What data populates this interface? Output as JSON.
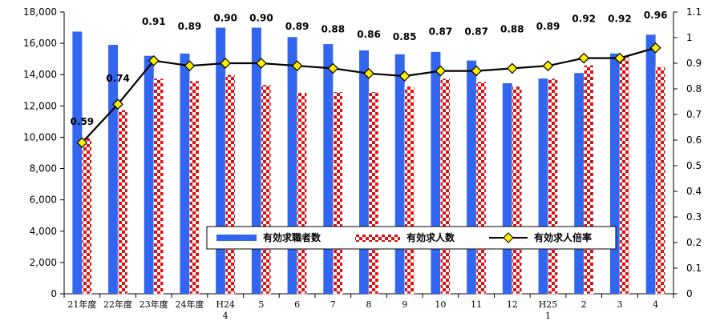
{
  "chart_data": {
    "type": "bar",
    "categories": [
      "21年度",
      "22年度",
      "23年度",
      "24年度",
      "H24\n4",
      "5",
      "6",
      "7",
      "8",
      "9",
      "10",
      "11",
      "12",
      "H25\n1",
      "2",
      "3",
      "4"
    ],
    "series": [
      {
        "name": "有効求職者数",
        "kind": "bar",
        "axis": "left",
        "color": "#3366ee",
        "values": [
          16750,
          15900,
          15200,
          15350,
          17000,
          17000,
          16400,
          15950,
          15550,
          15300,
          15450,
          14900,
          13450,
          13750,
          14100,
          15350,
          16550
        ]
      },
      {
        "name": "有効求人数",
        "kind": "bar",
        "axis": "left",
        "color": "#dd1111",
        "values": [
          9950,
          11750,
          13750,
          13600,
          14000,
          13350,
          12850,
          12900,
          12900,
          13250,
          13750,
          13550,
          13250,
          13750,
          14600,
          15200,
          14500
        ]
      },
      {
        "name": "有効求人倍率",
        "kind": "line",
        "axis": "right",
        "color": "#000000",
        "marker_color": "#ffee00",
        "values": [
          0.59,
          0.74,
          0.91,
          0.89,
          0.9,
          0.9,
          0.89,
          0.88,
          0.86,
          0.85,
          0.87,
          0.87,
          0.88,
          0.89,
          0.92,
          0.92,
          0.96
        ],
        "labels": [
          "0.59",
          "0.74",
          "0.91",
          "0.89",
          "0.90",
          "0.90",
          "0.89",
          "0.88",
          "0.86",
          "0.85",
          "0.87",
          "0.87",
          "0.88",
          "0.89",
          "0.92",
          "0.92",
          "0.96"
        ]
      }
    ],
    "y_left": {
      "min": 0,
      "max": 18000,
      "ticks": [
        "0",
        "2,000",
        "4,000",
        "6,000",
        "8,000",
        "10,000",
        "12,000",
        "14,000",
        "16,000",
        "18,000"
      ]
    },
    "y_right": {
      "min": 0,
      "max": 1.1,
      "ticks": [
        "0",
        "0.1",
        "0.2",
        "0.3",
        "0.4",
        "0.5",
        "0.6",
        "0.7",
        "0.8",
        "0.9",
        "1",
        "1.1"
      ]
    },
    "grid": false,
    "legend_position": "inside-bottom-center"
  }
}
